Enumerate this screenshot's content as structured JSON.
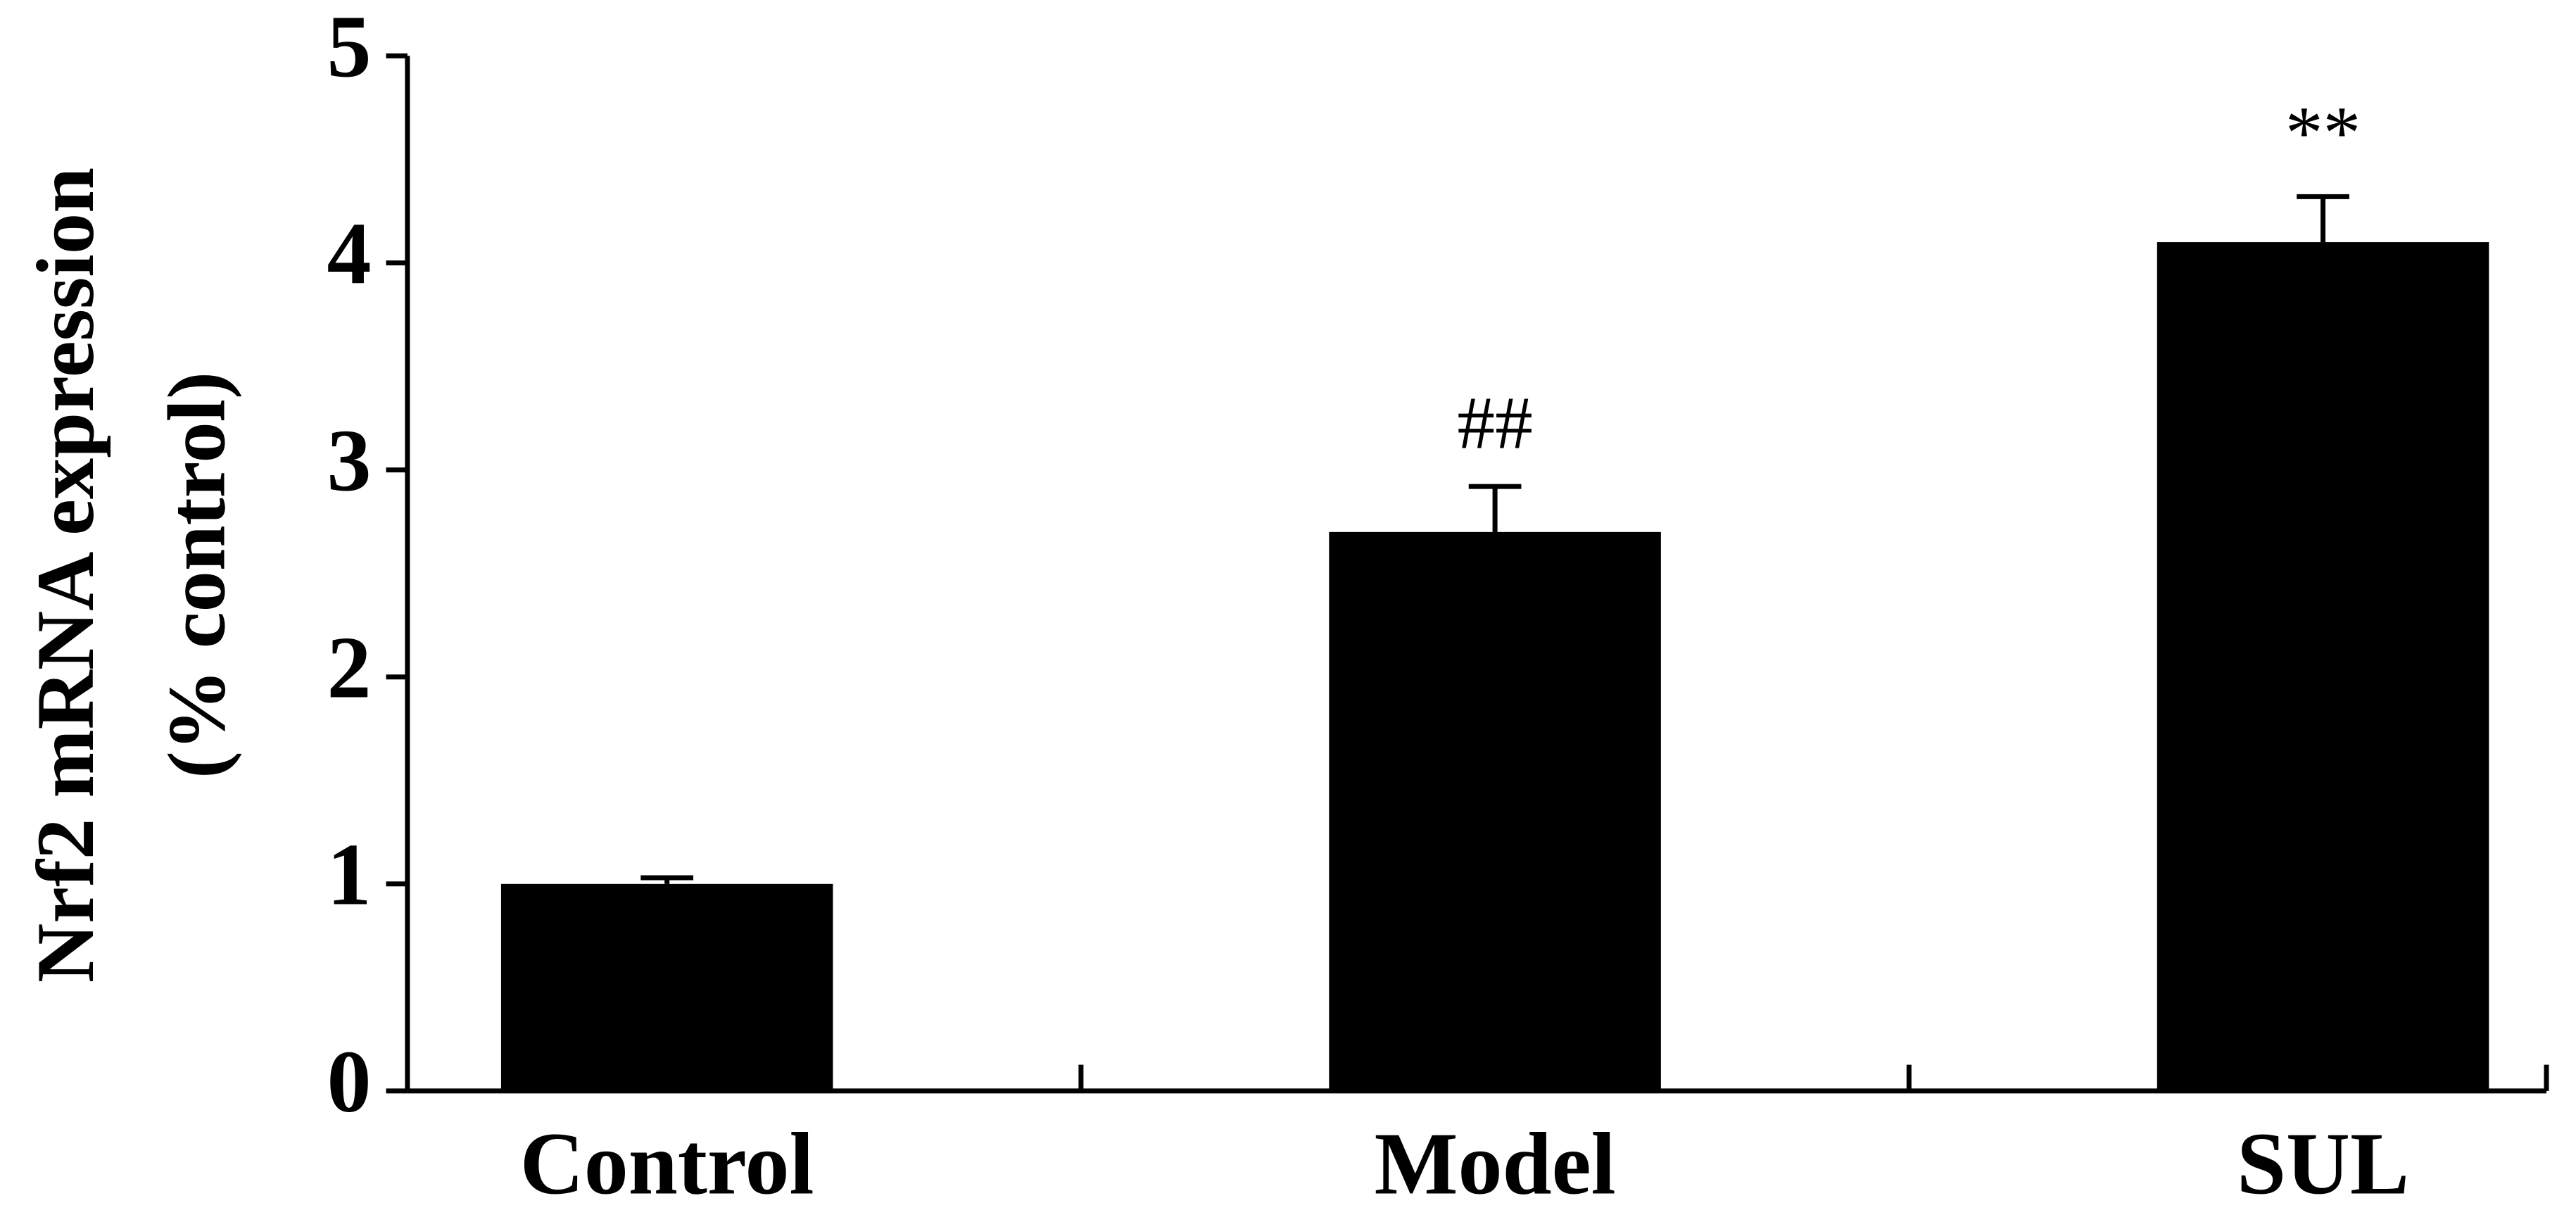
{
  "chart_data": {
    "type": "bar",
    "y_label": [
      "Nrf2 mRNA expression",
      "(% control)"
    ],
    "categories": [
      "Control",
      "Model",
      "SUL"
    ],
    "values": [
      1.0,
      2.7,
      4.1
    ],
    "errors": [
      0.03,
      0.22,
      0.22
    ],
    "annotations": [
      null,
      "##",
      "**"
    ],
    "color": "#000000",
    "ylim": [
      0,
      5
    ],
    "yticks": [
      0,
      1,
      2,
      3,
      4,
      5
    ],
    "grid": false
  }
}
